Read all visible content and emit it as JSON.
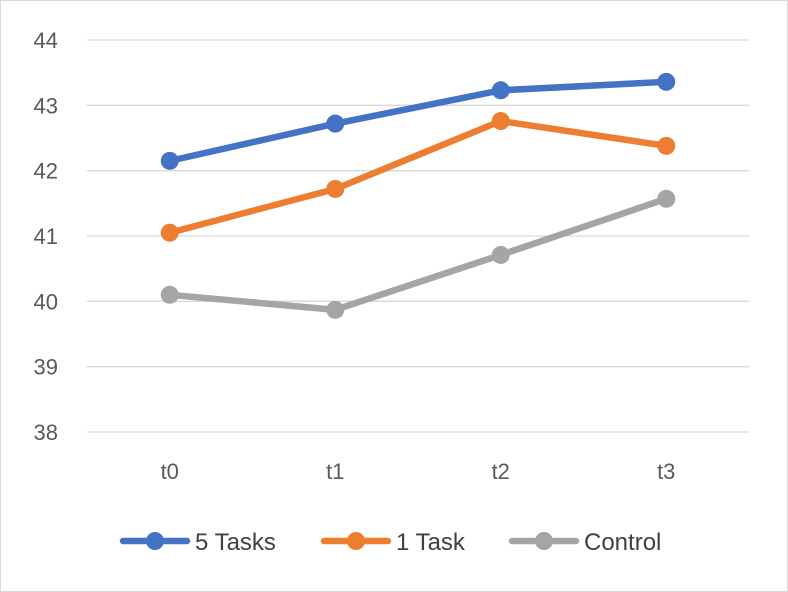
{
  "chart_data": {
    "type": "line",
    "title": "",
    "xlabel": "",
    "ylabel": "",
    "categories": [
      "t0",
      "t1",
      "t2",
      "t3"
    ],
    "ylim": [
      38,
      44
    ],
    "yticks": [
      "38",
      "39",
      "40",
      "41",
      "42",
      "43",
      "44"
    ],
    "grid": true,
    "legend_position": "bottom",
    "series": [
      {
        "name": "5 Tasks",
        "color": "#4472C4",
        "values": [
          42.15,
          42.72,
          43.23,
          43.36
        ]
      },
      {
        "name": "1 Task",
        "color": "#ED7D31",
        "values": [
          41.05,
          41.72,
          42.76,
          42.38
        ]
      },
      {
        "name": "Control",
        "color": "#A5A5A5",
        "values": [
          40.1,
          39.87,
          40.71,
          41.57
        ]
      }
    ]
  }
}
